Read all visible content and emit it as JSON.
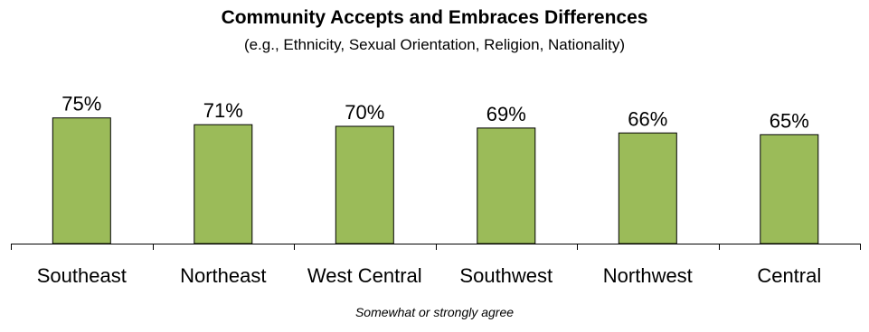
{
  "chart_data": {
    "type": "bar",
    "title": "Community Accepts and Embraces Differences",
    "subtitle": "(e.g., Ethnicity, Sexual Orientation, Religion, Nationality)",
    "footnote": "Somewhat or strongly agree",
    "categories": [
      "Southeast",
      "Northeast",
      "West Central",
      "Southwest",
      "Northwest",
      "Central"
    ],
    "values": [
      75,
      71,
      70,
      69,
      66,
      65
    ],
    "data_labels": [
      "75%",
      "71%",
      "70%",
      "69%",
      "66%",
      "65%"
    ],
    "xlabel": "",
    "ylabel": "",
    "ylim": [
      0,
      100
    ],
    "grid": false,
    "legend": "none",
    "bar_color": "#9BBB59"
  }
}
